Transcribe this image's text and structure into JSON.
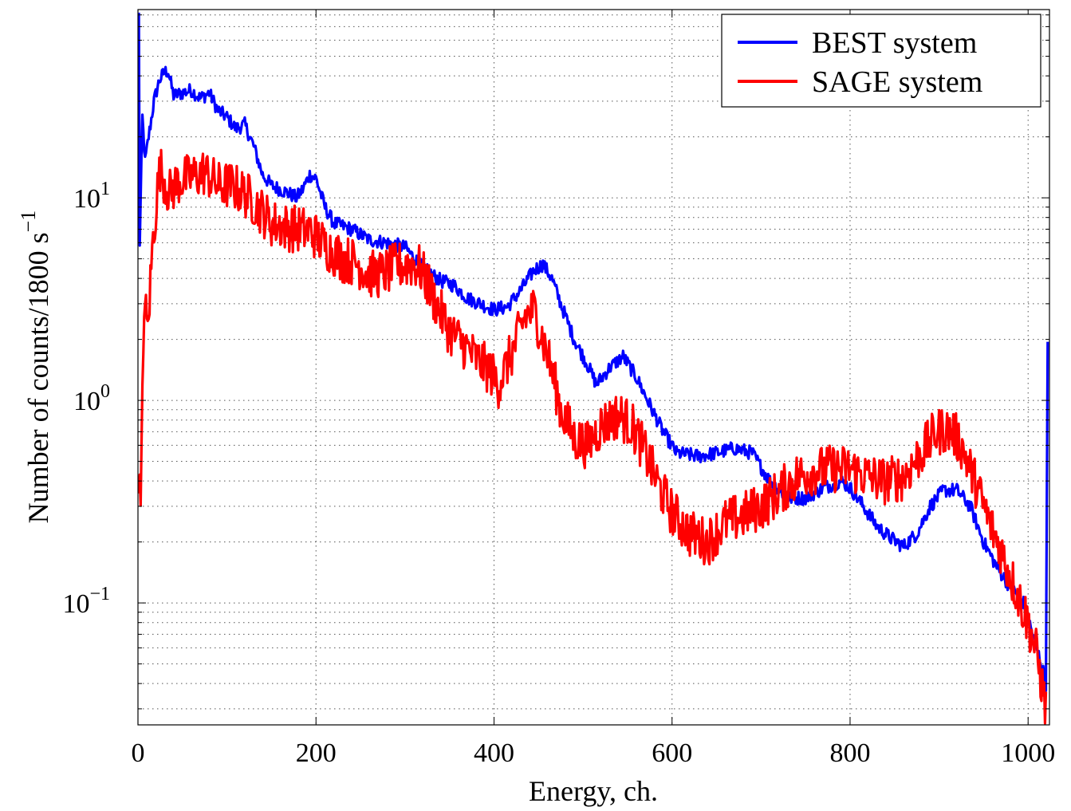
{
  "chart_data": {
    "type": "line",
    "title": "",
    "xlabel": "Energy, ch.",
    "ylabel_main": "Number of counts/1800 s",
    "ylabel_sup": "−1",
    "xlim": [
      0,
      1024
    ],
    "ylim": [
      0.025,
      85
    ],
    "yscale": "log",
    "grid": true,
    "legend_position": "top-right",
    "x_ticks": [
      {
        "value": 0,
        "label": "0"
      },
      {
        "value": 200,
        "label": "200"
      },
      {
        "value": 400,
        "label": "400"
      },
      {
        "value": 600,
        "label": "600"
      },
      {
        "value": 800,
        "label": "800"
      },
      {
        "value": 1000,
        "label": "1000"
      }
    ],
    "y_ticks": [
      {
        "value": 0.1,
        "base": "10",
        "exp": "−1"
      },
      {
        "value": 1,
        "base": "10",
        "exp": "0"
      },
      {
        "value": 10,
        "base": "10",
        "exp": "1"
      }
    ],
    "series": [
      {
        "name": "BEST system",
        "color": "#0000ff",
        "noise": 0.035,
        "points": [
          [
            1,
            80
          ],
          [
            2,
            6
          ],
          [
            5,
            25
          ],
          [
            8,
            15
          ],
          [
            12,
            20
          ],
          [
            18,
            30
          ],
          [
            24,
            38
          ],
          [
            30,
            42
          ],
          [
            34,
            42
          ],
          [
            40,
            32
          ],
          [
            50,
            33
          ],
          [
            60,
            34
          ],
          [
            70,
            31
          ],
          [
            80,
            33
          ],
          [
            90,
            27
          ],
          [
            100,
            25
          ],
          [
            110,
            22
          ],
          [
            120,
            23
          ],
          [
            130,
            18
          ],
          [
            140,
            13
          ],
          [
            150,
            11.5
          ],
          [
            160,
            11
          ],
          [
            170,
            10.5
          ],
          [
            178,
            10
          ],
          [
            185,
            11
          ],
          [
            193,
            13
          ],
          [
            200,
            12.5
          ],
          [
            210,
            9
          ],
          [
            220,
            7.5
          ],
          [
            240,
            7
          ],
          [
            260,
            6.2
          ],
          [
            280,
            6
          ],
          [
            300,
            5.7
          ],
          [
            320,
            4.5
          ],
          [
            340,
            3.9
          ],
          [
            355,
            3.7
          ],
          [
            370,
            3.2
          ],
          [
            385,
            3
          ],
          [
            400,
            2.8
          ],
          [
            415,
            2.9
          ],
          [
            430,
            3.5
          ],
          [
            445,
            4.4
          ],
          [
            455,
            4.7
          ],
          [
            465,
            4
          ],
          [
            475,
            3
          ],
          [
            490,
            2
          ],
          [
            505,
            1.5
          ],
          [
            515,
            1.2
          ],
          [
            530,
            1.45
          ],
          [
            545,
            1.65
          ],
          [
            560,
            1.3
          ],
          [
            575,
            0.95
          ],
          [
            590,
            0.7
          ],
          [
            605,
            0.55
          ],
          [
            630,
            0.53
          ],
          [
            650,
            0.55
          ],
          [
            670,
            0.58
          ],
          [
            690,
            0.55
          ],
          [
            710,
            0.4
          ],
          [
            730,
            0.33
          ],
          [
            750,
            0.33
          ],
          [
            770,
            0.37
          ],
          [
            790,
            0.4
          ],
          [
            800,
            0.37
          ],
          [
            815,
            0.3
          ],
          [
            830,
            0.24
          ],
          [
            845,
            0.21
          ],
          [
            860,
            0.19
          ],
          [
            875,
            0.22
          ],
          [
            890,
            0.3
          ],
          [
            905,
            0.36
          ],
          [
            920,
            0.36
          ],
          [
            935,
            0.3
          ],
          [
            950,
            0.2
          ],
          [
            965,
            0.15
          ],
          [
            980,
            0.12
          ],
          [
            995,
            0.1
          ],
          [
            1005,
            0.07
          ],
          [
            1015,
            0.05
          ],
          [
            1020,
            0.04
          ],
          [
            1022,
            2
          ]
        ]
      },
      {
        "name": "SAGE system",
        "color": "#ff0000",
        "noise": 0.12,
        "points": [
          [
            1,
            0.45
          ],
          [
            3,
            0.28
          ],
          [
            7,
            3.2
          ],
          [
            11,
            2.2
          ],
          [
            16,
            5.5
          ],
          [
            22,
            11
          ],
          [
            25,
            14
          ],
          [
            35,
            10.5
          ],
          [
            45,
            12
          ],
          [
            55,
            12.5
          ],
          [
            65,
            12.8
          ],
          [
            75,
            13.5
          ],
          [
            90,
            11.5
          ],
          [
            105,
            11.5
          ],
          [
            120,
            10.5
          ],
          [
            130,
            9.5
          ],
          [
            140,
            8.5
          ],
          [
            150,
            7.5
          ],
          [
            165,
            7.2
          ],
          [
            180,
            7
          ],
          [
            195,
            6.8
          ],
          [
            210,
            5.8
          ],
          [
            230,
            5
          ],
          [
            245,
            4.8
          ],
          [
            260,
            4.2
          ],
          [
            275,
            4.2
          ],
          [
            290,
            4.6
          ],
          [
            305,
            4.7
          ],
          [
            315,
            4.6
          ],
          [
            325,
            3.8
          ],
          [
            335,
            3
          ],
          [
            350,
            2.2
          ],
          [
            365,
            1.9
          ],
          [
            380,
            1.6
          ],
          [
            395,
            1.4
          ],
          [
            405,
            1.2
          ],
          [
            420,
            1.7
          ],
          [
            435,
            2.6
          ],
          [
            445,
            2.8
          ],
          [
            455,
            2
          ],
          [
            465,
            1.4
          ],
          [
            475,
            0.9
          ],
          [
            490,
            0.65
          ],
          [
            505,
            0.6
          ],
          [
            520,
            0.75
          ],
          [
            540,
            0.85
          ],
          [
            555,
            0.75
          ],
          [
            570,
            0.55
          ],
          [
            585,
            0.38
          ],
          [
            600,
            0.28
          ],
          [
            620,
            0.22
          ],
          [
            640,
            0.2
          ],
          [
            660,
            0.25
          ],
          [
            680,
            0.27
          ],
          [
            700,
            0.3
          ],
          [
            720,
            0.35
          ],
          [
            740,
            0.42
          ],
          [
            760,
            0.45
          ],
          [
            780,
            0.46
          ],
          [
            800,
            0.46
          ],
          [
            820,
            0.42
          ],
          [
            840,
            0.4
          ],
          [
            860,
            0.42
          ],
          [
            880,
            0.55
          ],
          [
            895,
            0.68
          ],
          [
            905,
            0.72
          ],
          [
            915,
            0.7
          ],
          [
            925,
            0.6
          ],
          [
            940,
            0.4
          ],
          [
            955,
            0.26
          ],
          [
            970,
            0.18
          ],
          [
            985,
            0.12
          ],
          [
            1000,
            0.08
          ],
          [
            1010,
            0.055
          ],
          [
            1020,
            0.03
          ]
        ]
      }
    ]
  }
}
